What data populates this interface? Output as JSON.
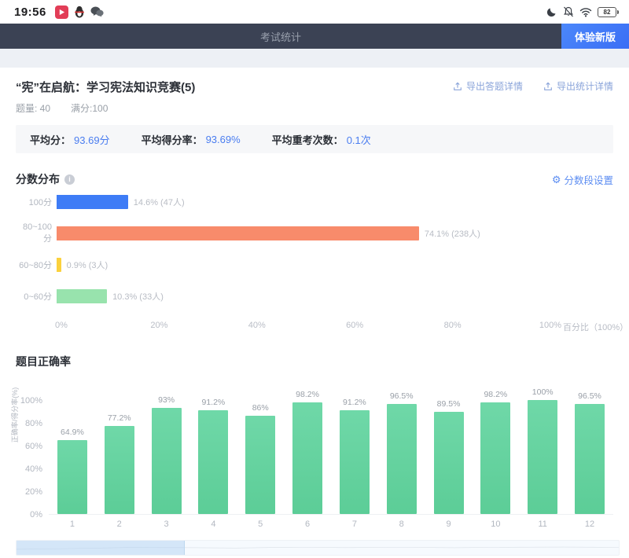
{
  "status_bar": {
    "time": "19:56",
    "battery_percent": "82",
    "left_icons": [
      "video-app-icon",
      "qq-icon",
      "wechat-icon"
    ],
    "right_icons": [
      "moon-icon",
      "bell-off-icon",
      "wifi-icon",
      "battery-icon"
    ]
  },
  "nav": {
    "title": "考试统计",
    "new_version_button": "体验新版",
    "bar_color": "#3b4254",
    "button_color": "#3f7df8"
  },
  "exam": {
    "title": "“宪”在启航：学习宪法知识竞赛(5)",
    "question_count": "题量: 40",
    "full_score": "满分:100",
    "export_answers_label": "导出答题详情",
    "export_stats_label": "导出统计详情"
  },
  "summary": {
    "avg_score_label": "平均分：",
    "avg_score_value": "93.69分",
    "avg_rate_label": "平均得分率：",
    "avg_rate_value": "93.69%",
    "avg_retake_label": "平均重考次数：",
    "avg_retake_value": "0.1次",
    "value_color": "#4a7df0"
  },
  "sections": {
    "score_distribution_title": "分数分布",
    "score_segment_settings": "分数段设置",
    "accuracy_title": "题目正确率"
  },
  "chart_data": [
    {
      "type": "bar",
      "orientation": "horizontal",
      "title": "分数分布",
      "categories": [
        "100分",
        "80~100分",
        "60~80分",
        "0~60分"
      ],
      "values": [
        14.6,
        74.1,
        0.9,
        10.3
      ],
      "counts": [
        47,
        238,
        3,
        33
      ],
      "labels": [
        "14.6% (47人)",
        "74.1% (238人)",
        "0.9% (3人)",
        "10.3% (33人)"
      ],
      "colors": [
        "#3e7cf6",
        "#f88b6b",
        "#fbd13d",
        "#98e3ad"
      ],
      "x_ticks": [
        "0%",
        "20%",
        "40%",
        "60%",
        "80%",
        "100%"
      ],
      "xlabel": "百分比（100%）",
      "xlim": [
        0,
        100
      ],
      "grid": false
    },
    {
      "type": "bar",
      "orientation": "vertical",
      "title": "题目正确率",
      "categories": [
        "1",
        "2",
        "3",
        "4",
        "5",
        "6",
        "7",
        "8",
        "9",
        "10",
        "11",
        "12"
      ],
      "values": [
        64.9,
        77.2,
        93,
        91.2,
        86,
        98.2,
        91.2,
        96.5,
        89.5,
        98.2,
        100,
        96.5
      ],
      "labels": [
        "64.9%",
        "77.2%",
        "93%",
        "91.2%",
        "86%",
        "98.2%",
        "91.2%",
        "96.5%",
        "89.5%",
        "98.2%",
        "100%",
        "96.5%"
      ],
      "bar_color": "#5ecd98",
      "ylabel": "正确率/得分率(%)",
      "y_ticks": [
        "0%",
        "20%",
        "40%",
        "60%",
        "80%",
        "100%"
      ],
      "ylim": [
        0,
        100
      ],
      "grid": false,
      "datazoom_window_percent": 28
    }
  ]
}
